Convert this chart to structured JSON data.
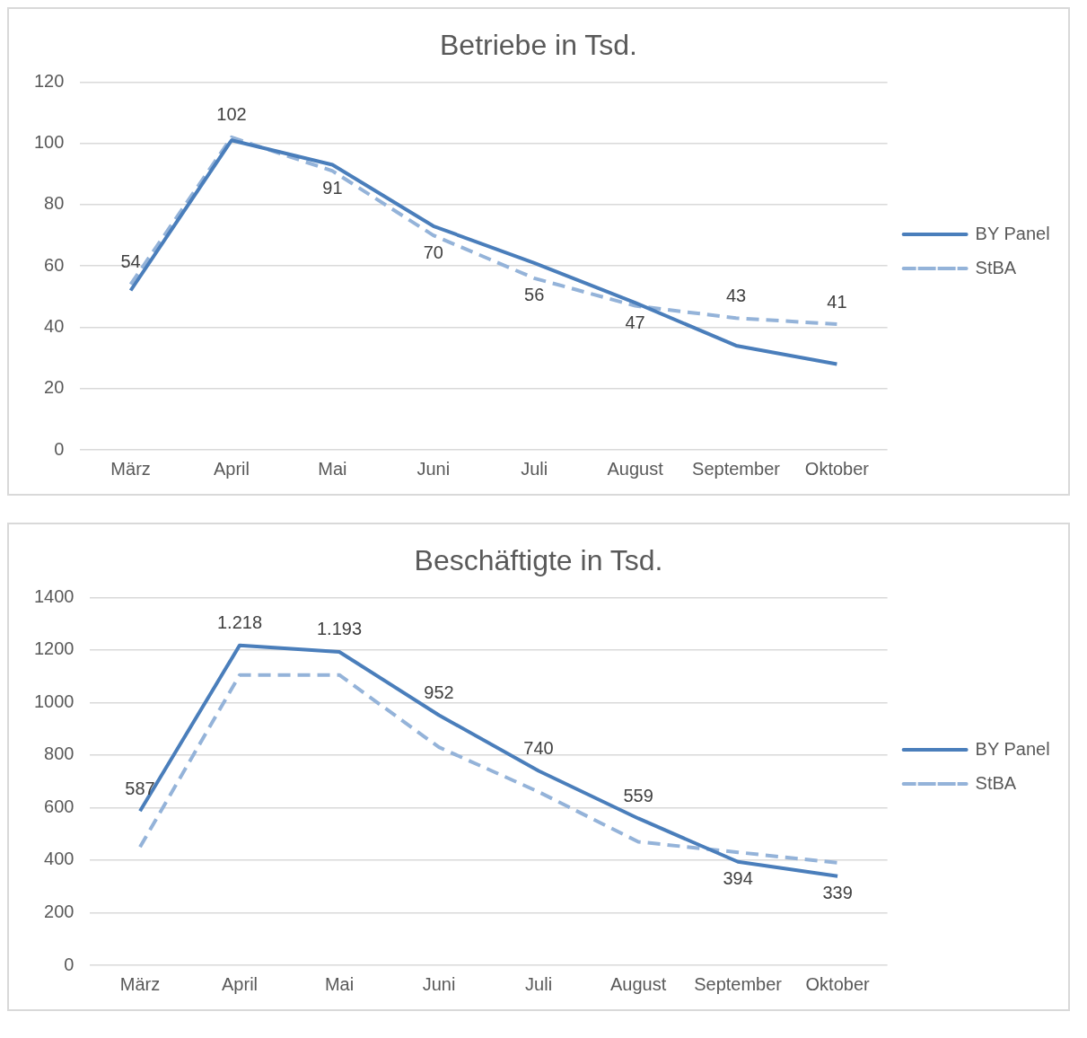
{
  "chart_data": [
    {
      "type": "line",
      "title": "Betriebe in Tsd.",
      "categories": [
        "März",
        "April",
        "Mai",
        "Juni",
        "Juli",
        "August",
        "September",
        "Oktober"
      ],
      "ylim": [
        0,
        120
      ],
      "yticks": [
        0,
        20,
        40,
        60,
        80,
        100,
        120
      ],
      "grid": "y",
      "legend": "right",
      "marker": "none",
      "series": [
        {
          "name": "BY Panel",
          "color": "#4a7ebb",
          "line_style": "solid",
          "values": [
            52,
            101,
            93,
            73,
            61,
            48,
            34,
            28
          ]
        },
        {
          "name": "StBA",
          "color": "#94b3d9",
          "line_style": "dashed",
          "values": [
            54,
            102,
            91,
            70,
            56,
            47,
            43,
            41
          ],
          "value_labels": [
            "54",
            "102",
            "91",
            "70",
            "56",
            "47",
            "43",
            "41"
          ]
        }
      ]
    },
    {
      "type": "line",
      "title": "Beschäftigte in Tsd.",
      "categories": [
        "März",
        "April",
        "Mai",
        "Juni",
        "Juli",
        "August",
        "September",
        "Oktober"
      ],
      "ylim": [
        0,
        1400
      ],
      "yticks": [
        0,
        200,
        400,
        600,
        800,
        1000,
        1200,
        1400
      ],
      "grid": "y",
      "legend": "right",
      "marker": "none",
      "series": [
        {
          "name": "BY Panel",
          "color": "#4a7ebb",
          "line_style": "solid",
          "values": [
            587,
            1218,
            1193,
            952,
            740,
            559,
            394,
            339
          ],
          "value_labels": [
            "587",
            "1.218",
            "1.193",
            "952",
            "740",
            "559",
            "394",
            "339"
          ]
        },
        {
          "name": "StBA",
          "color": "#94b3d9",
          "line_style": "dashed",
          "values": [
            450,
            1105,
            1105,
            830,
            660,
            470,
            430,
            390
          ]
        }
      ]
    }
  ]
}
